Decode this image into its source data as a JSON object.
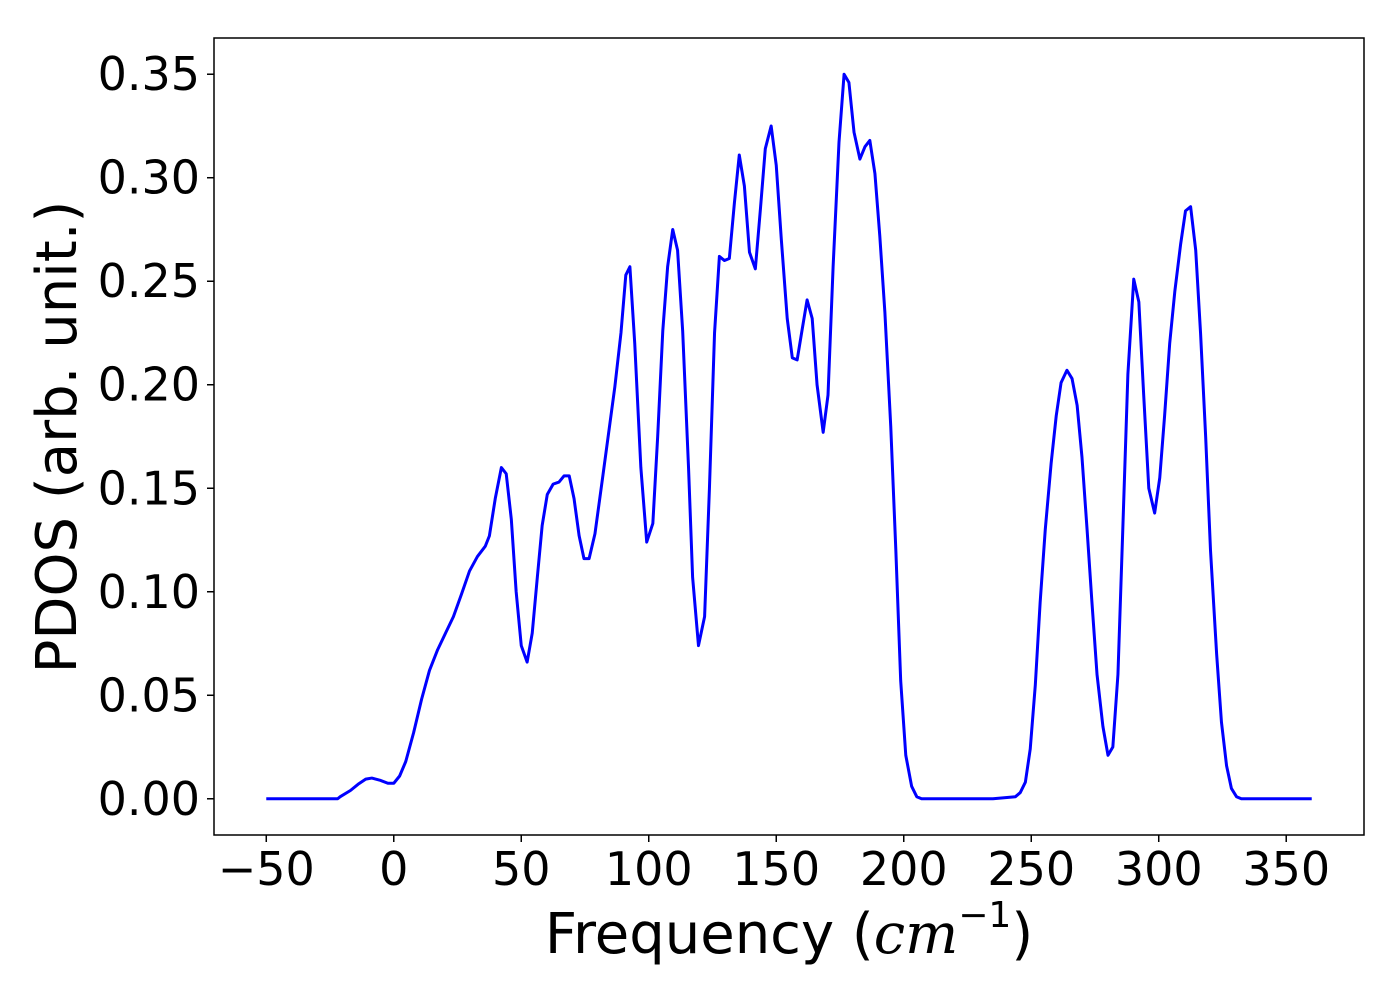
{
  "chart_data": {
    "type": "line",
    "ylabel": "PDOS (arb. unit.)",
    "xlabel": [
      "Frequency (",
      "cm",
      "−1",
      ")"
    ],
    "x": [
      -50,
      -40,
      -30,
      -22,
      -21,
      -17,
      -14,
      -11,
      -8.6,
      -5.5,
      -2.3,
      0,
      2.3,
      4.7,
      7.8,
      10.9,
      14,
      17.2,
      20.3,
      23.4,
      26.6,
      29.7,
      32.8,
      35.9,
      37.5,
      39.8,
      42.2,
      44.1,
      46.1,
      48,
      50,
      52.3,
      54.3,
      56.3,
      58.2,
      60.2,
      62.5,
      64.8,
      66.8,
      68.8,
      70.7,
      72.7,
      74.6,
      76.6,
      78.9,
      82,
      86.7,
      89.1,
      91,
      92.6,
      94.5,
      96.9,
      99.2,
      101.6,
      103.5,
      105.5,
      107.4,
      109.4,
      111.3,
      113.3,
      115.6,
      117.2,
      119.5,
      121.9,
      123.8,
      125.8,
      127.7,
      129.7,
      131.6,
      133.6,
      135.5,
      137.5,
      139.5,
      141.8,
      143.8,
      145.7,
      148,
      150,
      152,
      154.3,
      156.3,
      158.2,
      160.2,
      162.1,
      164.1,
      166,
      168.4,
      170.3,
      172.3,
      174.6,
      176.6,
      178.5,
      180.5,
      182.8,
      184.8,
      186.7,
      188.7,
      190.6,
      192.6,
      194.9,
      196.9,
      198.8,
      200.8,
      203.1,
      205.1,
      207,
      220,
      235,
      243.8,
      245.7,
      247.7,
      249.6,
      251.6,
      253.5,
      255.5,
      257.8,
      259.8,
      261.7,
      264,
      266,
      268,
      269.9,
      271.9,
      273.8,
      275.8,
      278.1,
      280.1,
      282,
      284,
      285.9,
      287.9,
      290.2,
      292.2,
      294.1,
      296.1,
      298.4,
      300.4,
      302.3,
      304.3,
      306.3,
      308.6,
      310.5,
      312.5,
      314.5,
      316.4,
      318.4,
      320.3,
      322.7,
      324.6,
      326.6,
      328.5,
      330.5,
      332.4,
      340,
      350,
      360
    ],
    "series": [
      {
        "name": "PDOS",
        "color": "#0000ff",
        "values": [
          0,
          0,
          0,
          0,
          0.001,
          0.004,
          0.007,
          0.0095,
          0.01,
          0.009,
          0.0075,
          0.0075,
          0.011,
          0.018,
          0.032,
          0.048,
          0.062,
          0.072,
          0.08,
          0.088,
          0.099,
          0.11,
          0.117,
          0.122,
          0.127,
          0.145,
          0.16,
          0.157,
          0.135,
          0.1,
          0.074,
          0.066,
          0.08,
          0.107,
          0.132,
          0.147,
          0.152,
          0.153,
          0.156,
          0.156,
          0.145,
          0.127,
          0.116,
          0.116,
          0.128,
          0.156,
          0.199,
          0.225,
          0.253,
          0.257,
          0.22,
          0.16,
          0.124,
          0.133,
          0.175,
          0.226,
          0.257,
          0.275,
          0.265,
          0.226,
          0.16,
          0.107,
          0.074,
          0.088,
          0.15,
          0.225,
          0.262,
          0.26,
          0.261,
          0.288,
          0.311,
          0.296,
          0.264,
          0.256,
          0.285,
          0.314,
          0.325,
          0.306,
          0.27,
          0.232,
          0.213,
          0.212,
          0.227,
          0.241,
          0.232,
          0.2,
          0.177,
          0.195,
          0.257,
          0.317,
          0.35,
          0.346,
          0.322,
          0.309,
          0.315,
          0.318,
          0.302,
          0.272,
          0.235,
          0.18,
          0.12,
          0.057,
          0.021,
          0.006,
          0.001,
          0,
          0,
          0,
          0.001,
          0.003,
          0.008,
          0.024,
          0.055,
          0.095,
          0.13,
          0.162,
          0.185,
          0.201,
          0.207,
          0.203,
          0.19,
          0.165,
          0.13,
          0.095,
          0.06,
          0.035,
          0.021,
          0.025,
          0.06,
          0.13,
          0.205,
          0.251,
          0.24,
          0.195,
          0.15,
          0.138,
          0.155,
          0.185,
          0.22,
          0.245,
          0.268,
          0.284,
          0.286,
          0.265,
          0.225,
          0.175,
          0.12,
          0.07,
          0.037,
          0.016,
          0.005,
          0.001,
          0,
          0,
          0,
          0
        ]
      }
    ],
    "xlim": [
      -70.5,
      380.5
    ],
    "xticks": [
      {
        "value": -50,
        "label": "−50"
      },
      0,
      50,
      100,
      150,
      200,
      250,
      300,
      350
    ],
    "ylim": [
      -0.0175,
      0.3675
    ],
    "yticks": [
      {
        "value": 0,
        "label": "0.00"
      },
      0.05,
      {
        "value": 0.1,
        "label": "0.10"
      },
      0.15,
      {
        "value": 0.2,
        "label": "0.20"
      },
      0.25,
      {
        "value": 0.3,
        "label": "0.30"
      },
      0.35
    ],
    "grid": false
  }
}
